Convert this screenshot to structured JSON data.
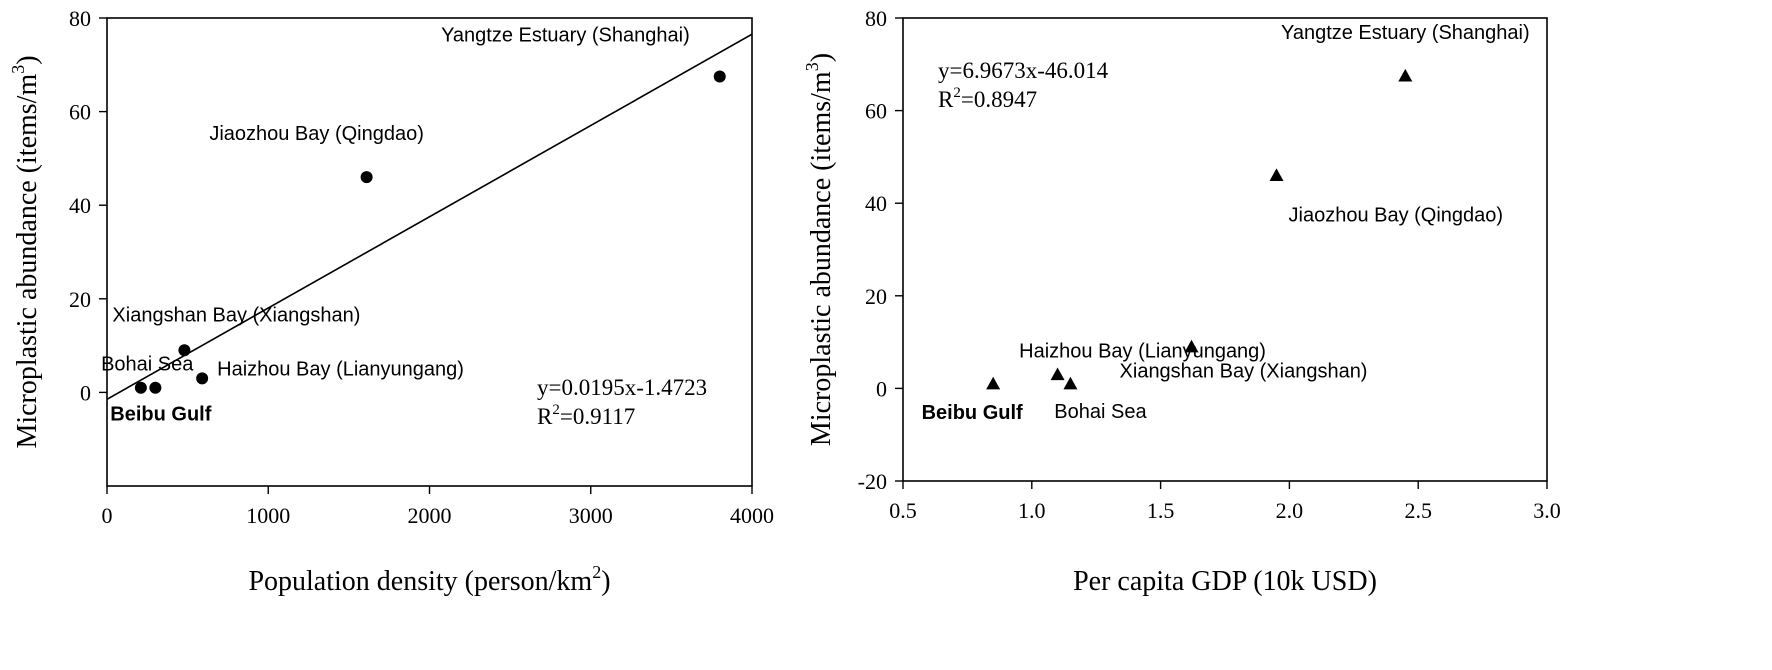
{
  "chart_data": [
    {
      "type": "scatter",
      "marker": "circle",
      "xlabel": "Population density (person/km",
      "xlabel_sup": "2",
      "xlabel_tail": ")",
      "ylabel": "Microplastic abundance (items/m",
      "ylabel_sup": "3",
      "ylabel_tail": ")",
      "xlim": [
        0,
        4000
      ],
      "ylim": [
        -20,
        80
      ],
      "xticks": [
        0,
        1000,
        2000,
        3000,
        4000
      ],
      "xtick_labels": [
        "0",
        "1000",
        "2000",
        "3000",
        "4000"
      ],
      "yticks": [
        0,
        20,
        40,
        60,
        80
      ],
      "ytick_labels": [
        "0",
        "20",
        "40",
        "60",
        "80"
      ],
      "grid": false,
      "points": [
        {
          "label": "Yangtze Estuary (Shanghai)",
          "x": 3800,
          "y": 67.5,
          "bold": false
        },
        {
          "label": "Jiaozhou Bay (Qingdao)",
          "x": 1610,
          "y": 46,
          "bold": false
        },
        {
          "label": "Xiangshan Bay (Xiangshan)",
          "x": 480,
          "y": 9,
          "bold": false
        },
        {
          "label": "Haizhou Bay (Lianyungang)",
          "x": 590,
          "y": 3,
          "bold": false
        },
        {
          "label": "Bohai Sea",
          "x": 300,
          "y": 1,
          "bold": false
        },
        {
          "label": "Beibu Gulf",
          "x": 210,
          "y": 1,
          "bold": true
        }
      ],
      "fit": {
        "slope": 0.0195,
        "intercept": -1.4723
      },
      "equation": "y=0.0195x-1.4723",
      "r2_prefix": "R",
      "r2_sup": "2",
      "r2_tail": "=0.9117"
    },
    {
      "type": "scatter",
      "marker": "triangle",
      "xlabel": "Per capita GDP (10k USD)",
      "ylabel": "Microplastic abundance (items/m",
      "ylabel_sup": "3",
      "ylabel_tail": ")",
      "xlim": [
        0.5,
        3.0
      ],
      "ylim": [
        -20,
        80
      ],
      "xticks": [
        0.5,
        1.0,
        1.5,
        2.0,
        2.5,
        3.0
      ],
      "xtick_labels": [
        "0.5",
        "1.0",
        "1.5",
        "2.0",
        "2.5",
        "3.0"
      ],
      "yticks": [
        -20,
        0,
        20,
        40,
        60,
        80
      ],
      "ytick_labels": [
        "-20",
        "0",
        "20",
        "40",
        "60",
        "80"
      ],
      "grid": false,
      "points": [
        {
          "label": "Yangtze Estuary (Shanghai)",
          "x": 2.45,
          "y": 67.5,
          "bold": false
        },
        {
          "label": "Jiaozhou Bay (Qingdao)",
          "x": 1.95,
          "y": 46,
          "bold": false
        },
        {
          "label": "Xiangshan Bay (Xiangshan)",
          "x": 1.62,
          "y": 9,
          "bold": false
        },
        {
          "label": "Haizhou Bay (Lianyungang)",
          "x": 1.1,
          "y": 3,
          "bold": false
        },
        {
          "label": "Bohai Sea",
          "x": 1.15,
          "y": 1,
          "bold": false
        },
        {
          "label": "Beibu Gulf",
          "x": 0.85,
          "y": 1,
          "bold": true
        }
      ],
      "fit": {
        "slope": 6.9673,
        "intercept": -46.014
      },
      "equation": "y=6.9673x-46.014",
      "r2_prefix": "R",
      "r2_sup": "2",
      "r2_tail": "=0.8947"
    }
  ]
}
